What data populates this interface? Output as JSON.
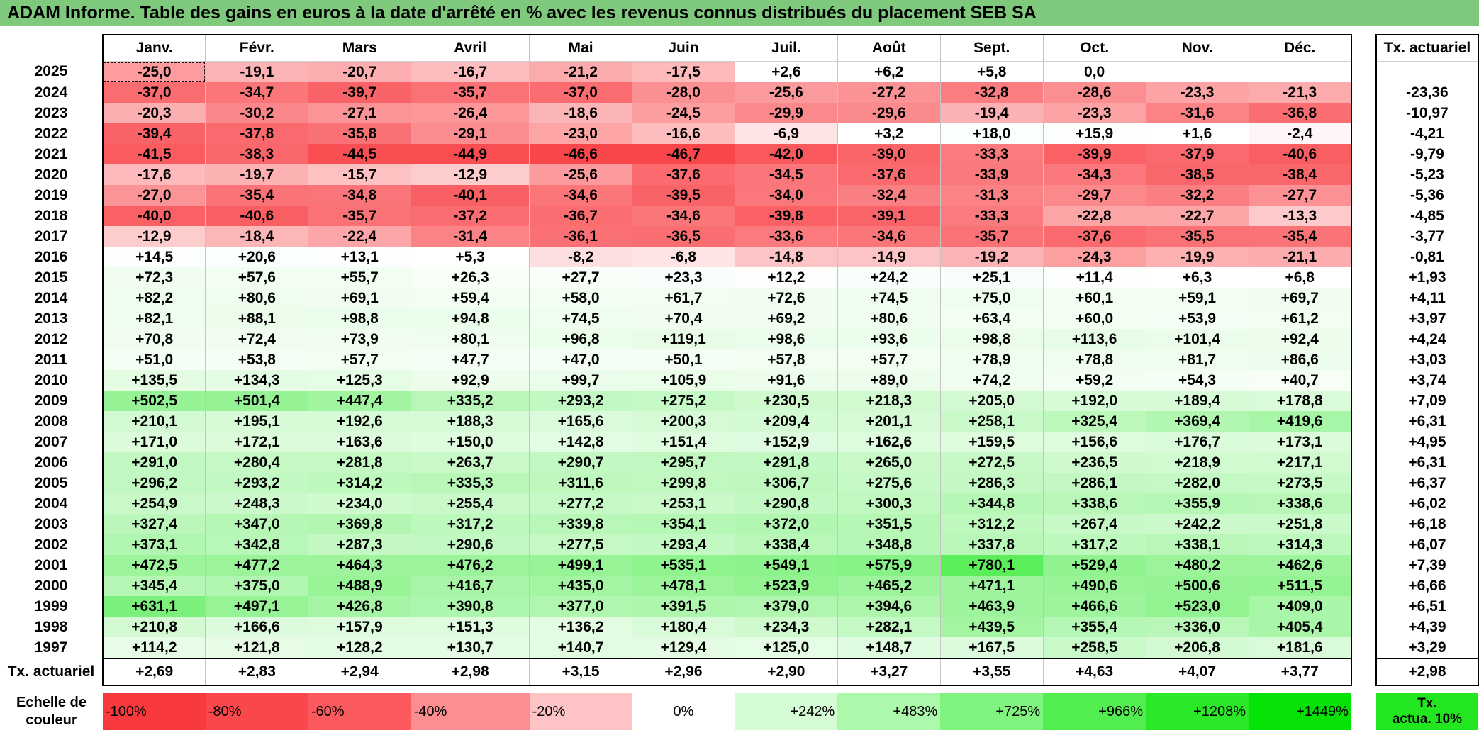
{
  "title": "ADAM Informe. Table des gains en euros à la date d'arrêté en % avec les revenus connus distribués du placement SEB SA",
  "months": [
    "Janv.",
    "Févr.",
    "Mars",
    "Avril",
    "Mai",
    "Juin",
    "Juil.",
    "Août",
    "Sept.",
    "Oct.",
    "Nov.",
    "Déc."
  ],
  "tx_header": "Tx. actuariel",
  "rows": [
    {
      "year": "2025",
      "vals": [
        "-25,0",
        "-19,1",
        "-20,7",
        "-16,7",
        "-21,2",
        "-17,5",
        "+2,6",
        "+6,2",
        "+5,8",
        "0,0",
        "",
        ""
      ],
      "tx": ""
    },
    {
      "year": "2024",
      "vals": [
        "-37,0",
        "-34,7",
        "-39,7",
        "-35,7",
        "-37,0",
        "-28,0",
        "-25,6",
        "-27,2",
        "-32,8",
        "-28,6",
        "-23,3",
        "-21,3"
      ],
      "tx": "-23,36"
    },
    {
      "year": "2023",
      "vals": [
        "-20,3",
        "-30,2",
        "-27,1",
        "-26,4",
        "-18,6",
        "-24,5",
        "-29,9",
        "-29,6",
        "-19,4",
        "-23,3",
        "-31,6",
        "-36,8"
      ],
      "tx": "-10,97"
    },
    {
      "year": "2022",
      "vals": [
        "-39,4",
        "-37,8",
        "-35,8",
        "-29,1",
        "-23,0",
        "-16,6",
        "-6,9",
        "+3,2",
        "+18,0",
        "+15,9",
        "+1,6",
        "-2,4"
      ],
      "tx": "-4,21"
    },
    {
      "year": "2021",
      "vals": [
        "-41,5",
        "-38,3",
        "-44,5",
        "-44,9",
        "-46,6",
        "-46,7",
        "-42,0",
        "-39,0",
        "-33,3",
        "-39,9",
        "-37,9",
        "-40,6"
      ],
      "tx": "-9,79"
    },
    {
      "year": "2020",
      "vals": [
        "-17,6",
        "-19,7",
        "-15,7",
        "-12,9",
        "-25,6",
        "-37,6",
        "-34,5",
        "-37,6",
        "-33,9",
        "-34,3",
        "-38,5",
        "-38,4"
      ],
      "tx": "-5,23"
    },
    {
      "year": "2019",
      "vals": [
        "-27,0",
        "-35,4",
        "-34,8",
        "-40,1",
        "-34,6",
        "-39,5",
        "-34,0",
        "-32,4",
        "-31,3",
        "-29,7",
        "-32,2",
        "-27,7"
      ],
      "tx": "-5,36"
    },
    {
      "year": "2018",
      "vals": [
        "-40,0",
        "-40,6",
        "-35,7",
        "-37,2",
        "-36,7",
        "-34,6",
        "-39,8",
        "-39,1",
        "-33,3",
        "-22,8",
        "-22,7",
        "-13,3"
      ],
      "tx": "-4,85"
    },
    {
      "year": "2017",
      "vals": [
        "-12,9",
        "-18,4",
        "-22,4",
        "-31,4",
        "-36,1",
        "-36,5",
        "-33,6",
        "-34,6",
        "-35,7",
        "-37,6",
        "-35,5",
        "-35,4"
      ],
      "tx": "-3,77"
    },
    {
      "year": "2016",
      "vals": [
        "+14,5",
        "+20,6",
        "+13,1",
        "+5,3",
        "-8,2",
        "-6,8",
        "-14,8",
        "-14,9",
        "-19,2",
        "-24,3",
        "-19,9",
        "-21,1"
      ],
      "tx": "-0,81"
    },
    {
      "year": "2015",
      "vals": [
        "+72,3",
        "+57,6",
        "+55,7",
        "+26,3",
        "+27,7",
        "+23,3",
        "+12,2",
        "+24,2",
        "+25,1",
        "+11,4",
        "+6,3",
        "+6,8"
      ],
      "tx": "+1,93"
    },
    {
      "year": "2014",
      "vals": [
        "+82,2",
        "+80,6",
        "+69,1",
        "+59,4",
        "+58,0",
        "+61,7",
        "+72,6",
        "+74,5",
        "+75,0",
        "+60,1",
        "+59,1",
        "+69,7"
      ],
      "tx": "+4,11"
    },
    {
      "year": "2013",
      "vals": [
        "+82,1",
        "+88,1",
        "+98,8",
        "+94,8",
        "+74,5",
        "+70,4",
        "+69,2",
        "+80,6",
        "+63,4",
        "+60,0",
        "+53,9",
        "+61,2"
      ],
      "tx": "+3,97"
    },
    {
      "year": "2012",
      "vals": [
        "+70,8",
        "+72,4",
        "+73,9",
        "+80,1",
        "+96,8",
        "+119,1",
        "+98,6",
        "+93,6",
        "+98,8",
        "+113,6",
        "+101,4",
        "+92,4"
      ],
      "tx": "+4,24"
    },
    {
      "year": "2011",
      "vals": [
        "+51,0",
        "+53,8",
        "+57,7",
        "+47,7",
        "+47,0",
        "+50,1",
        "+57,8",
        "+57,7",
        "+78,9",
        "+78,8",
        "+81,7",
        "+86,6"
      ],
      "tx": "+3,03"
    },
    {
      "year": "2010",
      "vals": [
        "+135,5",
        "+134,3",
        "+125,3",
        "+92,9",
        "+99,7",
        "+105,9",
        "+91,6",
        "+89,0",
        "+74,2",
        "+59,2",
        "+54,3",
        "+40,7"
      ],
      "tx": "+3,74"
    },
    {
      "year": "2009",
      "vals": [
        "+502,5",
        "+501,4",
        "+447,4",
        "+335,2",
        "+293,2",
        "+275,2",
        "+230,5",
        "+218,3",
        "+205,0",
        "+192,0",
        "+189,4",
        "+178,8"
      ],
      "tx": "+7,09"
    },
    {
      "year": "2008",
      "vals": [
        "+210,1",
        "+195,1",
        "+192,6",
        "+188,3",
        "+165,6",
        "+200,3",
        "+209,4",
        "+201,1",
        "+258,1",
        "+325,4",
        "+369,4",
        "+419,6"
      ],
      "tx": "+6,31"
    },
    {
      "year": "2007",
      "vals": [
        "+171,0",
        "+172,1",
        "+163,6",
        "+150,0",
        "+142,8",
        "+151,4",
        "+152,9",
        "+162,6",
        "+159,5",
        "+156,6",
        "+176,7",
        "+173,1"
      ],
      "tx": "+4,95"
    },
    {
      "year": "2006",
      "vals": [
        "+291,0",
        "+280,4",
        "+281,8",
        "+263,7",
        "+290,7",
        "+295,7",
        "+291,8",
        "+265,0",
        "+272,5",
        "+236,5",
        "+218,9",
        "+217,1"
      ],
      "tx": "+6,31"
    },
    {
      "year": "2005",
      "vals": [
        "+296,2",
        "+293,2",
        "+314,2",
        "+335,3",
        "+311,6",
        "+299,8",
        "+306,7",
        "+275,6",
        "+286,3",
        "+286,1",
        "+282,0",
        "+273,5"
      ],
      "tx": "+6,37"
    },
    {
      "year": "2004",
      "vals": [
        "+254,9",
        "+248,3",
        "+234,0",
        "+255,4",
        "+277,2",
        "+253,1",
        "+290,8",
        "+300,3",
        "+344,8",
        "+338,6",
        "+355,9",
        "+338,6"
      ],
      "tx": "+6,02"
    },
    {
      "year": "2003",
      "vals": [
        "+327,4",
        "+347,0",
        "+369,8",
        "+317,2",
        "+339,8",
        "+354,1",
        "+372,0",
        "+351,5",
        "+312,2",
        "+267,4",
        "+242,2",
        "+251,8"
      ],
      "tx": "+6,18"
    },
    {
      "year": "2002",
      "vals": [
        "+373,1",
        "+342,8",
        "+287,3",
        "+290,6",
        "+277,5",
        "+293,4",
        "+338,4",
        "+348,8",
        "+337,8",
        "+317,2",
        "+338,1",
        "+314,3"
      ],
      "tx": "+6,07"
    },
    {
      "year": "2001",
      "vals": [
        "+472,5",
        "+477,2",
        "+464,3",
        "+476,2",
        "+499,1",
        "+535,1",
        "+549,1",
        "+575,9",
        "+780,1",
        "+529,4",
        "+480,2",
        "+462,6"
      ],
      "tx": "+7,39"
    },
    {
      "year": "2000",
      "vals": [
        "+345,4",
        "+375,0",
        "+488,9",
        "+416,7",
        "+435,0",
        "+478,1",
        "+523,9",
        "+465,2",
        "+471,1",
        "+490,6",
        "+500,6",
        "+511,5"
      ],
      "tx": "+6,66"
    },
    {
      "year": "1999",
      "vals": [
        "+631,1",
        "+497,1",
        "+426,8",
        "+390,8",
        "+377,0",
        "+391,5",
        "+379,0",
        "+394,6",
        "+463,9",
        "+466,6",
        "+523,0",
        "+409,0"
      ],
      "tx": "+6,51"
    },
    {
      "year": "1998",
      "vals": [
        "+210,8",
        "+166,6",
        "+157,9",
        "+151,3",
        "+136,2",
        "+180,4",
        "+234,3",
        "+282,1",
        "+439,5",
        "+355,4",
        "+336,0",
        "+405,4"
      ],
      "tx": "+4,39"
    },
    {
      "year": "1997",
      "vals": [
        "+114,2",
        "+121,8",
        "+128,2",
        "+130,7",
        "+140,7",
        "+129,4",
        "+125,0",
        "+148,7",
        "+167,5",
        "+258,5",
        "+206,8",
        "+181,6"
      ],
      "tx": "+3,29"
    }
  ],
  "summary": {
    "label": "Tx. actuariel",
    "vals": [
      "+2,69",
      "+2,83",
      "+2,94",
      "+2,98",
      "+3,15",
      "+2,96",
      "+2,90",
      "+3,27",
      "+3,55",
      "+4,63",
      "+4,07",
      "+3,77"
    ],
    "tx": "+2,98"
  },
  "legend": {
    "label_line1": "Echelle de",
    "label_line2": "couleur",
    "swatches": [
      {
        "text": "-100%",
        "color": "#f8393e",
        "align": "left"
      },
      {
        "text": "-80%",
        "color": "#f9474c",
        "align": "left"
      },
      {
        "text": "-60%",
        "color": "#fa5a5e",
        "align": "left"
      },
      {
        "text": "-40%",
        "color": "#fc8d90",
        "align": "left"
      },
      {
        "text": "-20%",
        "color": "#fec3c5",
        "align": "left"
      },
      {
        "text": "0%",
        "color": "#ffffff",
        "align": "center"
      },
      {
        "text": "+242%",
        "color": "#d6fcd6",
        "align": "right"
      },
      {
        "text": "+483%",
        "color": "#acf9ac",
        "align": "right"
      },
      {
        "text": "+725%",
        "color": "#80f47f",
        "align": "right"
      },
      {
        "text": "+966%",
        "color": "#52ee50",
        "align": "right"
      },
      {
        "text": "+1208%",
        "color": "#2be829",
        "align": "right"
      },
      {
        "text": "+1449%",
        "color": "#06e106",
        "align": "right"
      }
    ],
    "tx_line1": "Tx.",
    "tx_line2": "actua. 10%",
    "tx_color": "#22e620"
  },
  "colors": {
    "title_bar": "#7ec97b"
  }
}
